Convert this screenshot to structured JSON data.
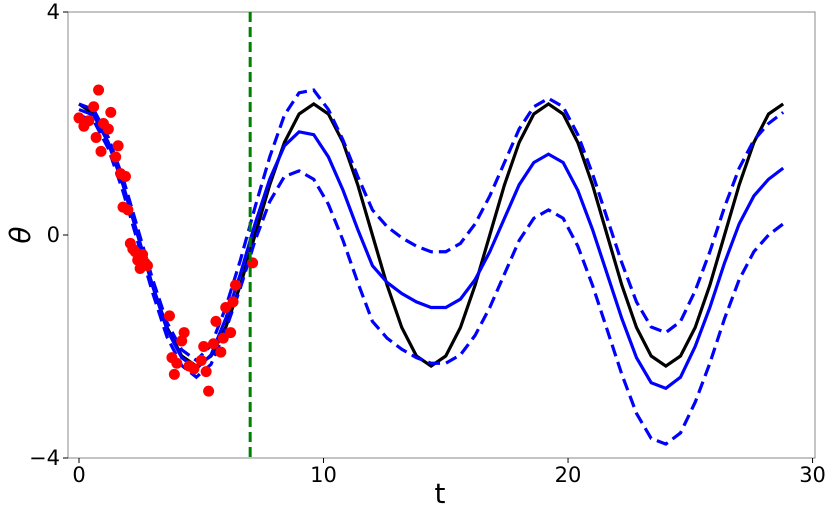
{
  "chart_data": {
    "type": "line",
    "xlabel": "t",
    "ylabel": "θ",
    "xlim": [
      -0.45,
      30.1
    ],
    "ylim": [
      -4,
      4
    ],
    "xticks": [
      0,
      10,
      20,
      30
    ],
    "yticks": [
      {
        "value": -4,
        "label": "−4"
      },
      0,
      4
    ],
    "x": [
      0,
      0.6,
      1.2,
      1.8,
      2.4,
      3.0,
      3.6,
      4.2,
      4.8,
      5.4,
      6.0,
      6.6,
      7.2,
      7.8,
      8.4,
      9.0,
      9.6,
      10.2,
      10.8,
      11.4,
      12.0,
      12.6,
      13.2,
      13.8,
      14.4,
      15.0,
      15.6,
      16.2,
      16.8,
      17.4,
      18.0,
      18.6,
      19.2,
      19.8,
      20.4,
      21.0,
      21.6,
      22.2,
      22.8,
      23.4,
      24.0,
      24.6,
      25.2,
      25.8,
      26.4,
      27.0,
      27.6,
      28.2,
      28.8
    ],
    "series": [
      {
        "color": "#000000",
        "dashed": false,
        "values": [
          2.35,
          2.17,
          1.66,
          0.9,
          0,
          -0.9,
          -1.66,
          -2.17,
          -2.35,
          -2.17,
          -1.66,
          -0.9,
          0,
          0.9,
          1.66,
          2.17,
          2.35,
          2.17,
          1.66,
          0.9,
          0,
          -0.9,
          -1.66,
          -2.17,
          -2.35,
          -2.17,
          -1.66,
          -0.9,
          0,
          0.9,
          1.66,
          2.17,
          2.35,
          2.17,
          1.66,
          0.9,
          0,
          -0.9,
          -1.66,
          -2.17,
          -2.35,
          -2.17,
          -1.66,
          -0.9,
          0,
          0.9,
          1.66,
          2.17,
          2.35
        ]
      },
      {
        "color": "#0000ff",
        "dashed": false,
        "values": [
          2.25,
          2.15,
          1.65,
          0.9,
          0.0,
          -0.9,
          -1.7,
          -2.2,
          -2.4,
          -2.15,
          -1.5,
          -0.7,
          0.2,
          1.0,
          1.6,
          1.85,
          1.8,
          1.4,
          0.8,
          0.1,
          -0.55,
          -0.85,
          -1.05,
          -1.2,
          -1.3,
          -1.3,
          -1.15,
          -0.8,
          -0.3,
          0.3,
          0.9,
          1.3,
          1.45,
          1.3,
          0.8,
          0.1,
          -0.7,
          -1.5,
          -2.2,
          -2.65,
          -2.75,
          -2.55,
          -2.0,
          -1.3,
          -0.5,
          0.2,
          0.7,
          1.0,
          1.2
        ]
      },
      {
        "color": "#0000ff",
        "dashed": true,
        "values": [
          2.35,
          2.25,
          1.75,
          1.02,
          0.12,
          -0.78,
          -1.57,
          -2.06,
          -2.25,
          -1.98,
          -1.3,
          -0.45,
          0.5,
          1.4,
          2.15,
          2.55,
          2.6,
          2.25,
          1.7,
          1.05,
          0.45,
          0.15,
          -0.05,
          -0.2,
          -0.3,
          -0.3,
          -0.15,
          0.2,
          0.7,
          1.3,
          1.9,
          2.3,
          2.45,
          2.3,
          1.8,
          1.1,
          0.3,
          -0.5,
          -1.2,
          -1.65,
          -1.75,
          -1.55,
          -1.0,
          -0.3,
          0.5,
          1.2,
          1.7,
          2.0,
          2.2
        ]
      },
      {
        "color": "#0000ff",
        "dashed": true,
        "values": [
          2.15,
          2.05,
          1.55,
          0.78,
          -0.12,
          -1.02,
          -1.83,
          -2.34,
          -2.55,
          -2.32,
          -1.7,
          -0.95,
          -0.1,
          0.6,
          1.05,
          1.15,
          1.0,
          0.55,
          -0.1,
          -0.85,
          -1.55,
          -1.85,
          -2.05,
          -2.2,
          -2.3,
          -2.3,
          -2.15,
          -1.8,
          -1.3,
          -0.7,
          -0.1,
          0.3,
          0.45,
          0.3,
          -0.2,
          -0.9,
          -1.7,
          -2.5,
          -3.2,
          -3.65,
          -3.75,
          -3.55,
          -3.0,
          -2.3,
          -1.5,
          -0.8,
          -0.3,
          0.0,
          0.2
        ]
      }
    ],
    "scatter": {
      "color": "#ff0000",
      "x": [
        0.0,
        0.2,
        0.4,
        0.6,
        0.7,
        0.8,
        0.9,
        1.0,
        1.2,
        1.3,
        1.5,
        1.6,
        1.7,
        1.8,
        1.9,
        2.0,
        2.1,
        2.2,
        2.3,
        2.4,
        2.5,
        2.6,
        2.7,
        2.8,
        3.7,
        3.8,
        3.9,
        4.0,
        4.2,
        4.3,
        4.5,
        4.7,
        5.0,
        5.1,
        5.2,
        5.3,
        5.5,
        5.6,
        5.8,
        5.9,
        6.0,
        6.2,
        6.3,
        6.4,
        7.1
      ],
      "y": [
        2.1,
        1.95,
        2.05,
        2.3,
        1.75,
        2.6,
        1.5,
        2.0,
        1.9,
        2.2,
        1.4,
        1.6,
        1.1,
        0.5,
        1.05,
        0.45,
        -0.15,
        -0.25,
        -0.3,
        -0.45,
        -0.6,
        -0.35,
        -0.5,
        -0.55,
        -1.45,
        -2.2,
        -2.5,
        -2.3,
        -1.9,
        -1.75,
        -2.35,
        -2.4,
        -2.25,
        -2.0,
        -2.45,
        -2.8,
        -1.95,
        -1.55,
        -2.1,
        -1.85,
        -1.3,
        -1.75,
        -1.2,
        -0.9,
        -0.5
      ]
    },
    "vline": {
      "x": 7.0,
      "color": "#008000"
    }
  }
}
